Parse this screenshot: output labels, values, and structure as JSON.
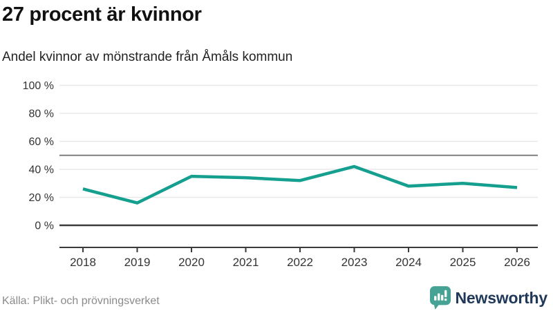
{
  "header": {
    "title": "27 procent är kvinnor",
    "subtitle": "Andel kvinnor av mönstrande från Åmåls kommun"
  },
  "chart_data": {
    "type": "line",
    "title": "27 procent är kvinnor",
    "subtitle": "Andel kvinnor av mönstrande från Åmåls kommun",
    "categories": [
      "2018",
      "2019",
      "2020",
      "2021",
      "2022",
      "2023",
      "2024",
      "2025",
      "2026"
    ],
    "series": [
      {
        "name": "Andel kvinnor av mönstrande",
        "values": [
          26,
          16,
          35,
          34,
          32,
          42,
          28,
          30,
          27
        ]
      }
    ],
    "unit": "%",
    "ylim": [
      0,
      100
    ],
    "y_ticks": [
      {
        "value": 100,
        "label": "100 %"
      },
      {
        "value": 80,
        "label": "80 %"
      },
      {
        "value": 60,
        "label": "60 %"
      },
      {
        "value": 40,
        "label": "40 %"
      },
      {
        "value": 20,
        "label": "20 %"
      },
      {
        "value": 0,
        "label": "0 %"
      }
    ],
    "reference_line": 50,
    "grid": "horizontal",
    "legend_position": "none",
    "colors": {
      "line": "#149f8f",
      "grid": "#e8e8e8",
      "reference": "#7d7d7d",
      "axis": "#3a3a3a",
      "tick_label": "#333333"
    }
  },
  "footer": {
    "source": "Källa: Plikt- och prövningsverket",
    "brand": "Newsworthy",
    "brand_color": "#20395a",
    "logo_color": "#46a294"
  }
}
